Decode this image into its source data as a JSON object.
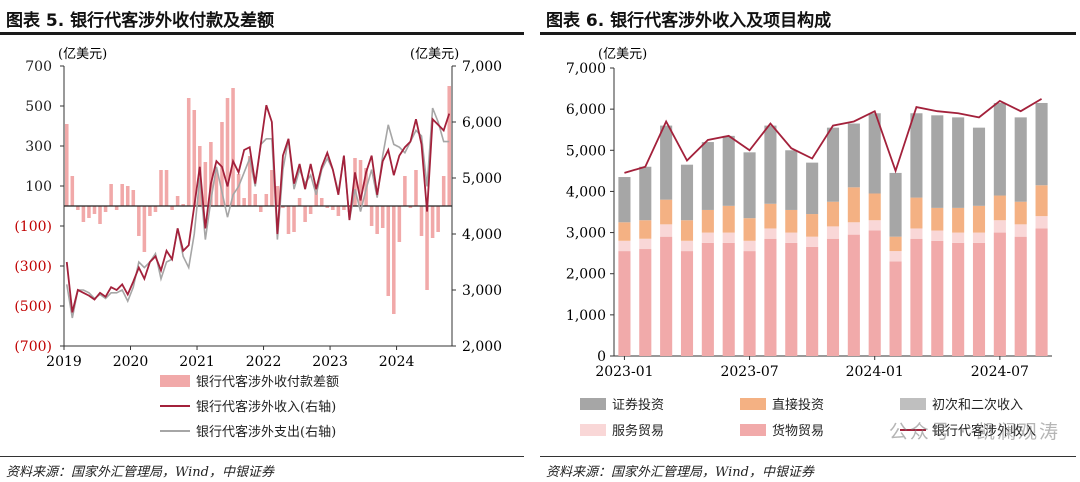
{
  "left": {
    "title": "图表 5. 银行代客涉外收付款及差额",
    "source": "资料来源：国家外汇管理局，Wind，中银证券",
    "chart_data": {
      "type": "bar",
      "left_unit": "(亿美元)",
      "right_unit": "(亿美元)",
      "left_ticks": [
        "700",
        "500",
        "300",
        "100",
        "(100)",
        "(300)",
        "(500)",
        "(700)"
      ],
      "left_tick_values": [
        700,
        500,
        300,
        100,
        -100,
        -300,
        -500,
        -700
      ],
      "right_ticks": [
        "7,000",
        "6,000",
        "5,000",
        "4,000",
        "3,000",
        "2,000"
      ],
      "right_tick_values": [
        7000,
        6000,
        5000,
        4000,
        3000,
        2000
      ],
      "ylim_left": [
        -700,
        700
      ],
      "ylim_right": [
        2000,
        7000
      ],
      "x_ticks": [
        "2019",
        "2020",
        "2021",
        "2022",
        "2023",
        "2024"
      ],
      "x_tick_index": [
        0,
        12,
        24,
        36,
        48,
        60
      ],
      "n_months": 70,
      "colors": {
        "bar": "#f1a9a9",
        "income": "#a3213b",
        "expense": "#a6a6a6",
        "negative_tick": "#c00000"
      },
      "series": [
        {
          "name": "银行代客涉外收付款差额",
          "kind": "bar",
          "values": [
            410,
            150,
            -20,
            -80,
            -60,
            -40,
            -90,
            -30,
            110,
            -20,
            110,
            100,
            80,
            -150,
            -230,
            -50,
            -30,
            180,
            180,
            -20,
            50,
            10,
            540,
            480,
            300,
            220,
            320,
            180,
            420,
            540,
            590,
            160,
            40,
            250,
            60,
            -30,
            60,
            180,
            100,
            -10,
            -140,
            -130,
            40,
            -80,
            -40,
            110,
            40,
            -10,
            -20,
            -50,
            -20,
            -30,
            240,
            230,
            190,
            -100,
            -140,
            -110,
            -450,
            -540,
            -180,
            150,
            -10,
            180,
            -150,
            -420,
            -160,
            -130,
            150,
            600
          ]
        },
        {
          "name": "银行代客涉外收入(右轴)",
          "kind": "line",
          "values": [
            3500,
            2600,
            3000,
            2950,
            2900,
            2830,
            2950,
            2880,
            3050,
            3000,
            3100,
            2920,
            3150,
            3400,
            3200,
            3500,
            3600,
            3350,
            3700,
            3550,
            4100,
            3700,
            3800,
            4500,
            5200,
            4100,
            4900,
            5300,
            5200,
            4850,
            5300,
            5100,
            5500,
            5550,
            4900,
            5600,
            6300,
            6000,
            4000,
            5400,
            5700,
            4900,
            5250,
            4800,
            5250,
            4800,
            5200,
            5450,
            5150,
            4700,
            5400,
            4250,
            5100,
            4600,
            5100,
            5400,
            4700,
            5300,
            5500,
            5050,
            5400,
            5550,
            5650,
            6050,
            5600,
            4400,
            6050,
            5950,
            5850,
            6150
          ]
        },
        {
          "name": "银行代客涉外支出(右轴)",
          "kind": "line",
          "values": [
            3100,
            2500,
            3000,
            3000,
            2950,
            2850,
            2920,
            2850,
            2950,
            2950,
            3000,
            2800,
            3050,
            3500,
            3400,
            3500,
            3650,
            3200,
            3500,
            3550,
            4100,
            3600,
            3400,
            4000,
            5000,
            3900,
            4600,
            5200,
            4750,
            4300,
            4700,
            4850,
            5100,
            5350,
            4850,
            5600,
            5700,
            5700,
            3900,
            5150,
            5700,
            4800,
            5150,
            4900,
            5050,
            4700,
            5150,
            5350,
            5150,
            4750,
            5400,
            4250,
            4800,
            4400,
            4800,
            5150,
            4650,
            5400,
            5950,
            5600,
            5550,
            5450,
            5650,
            5850,
            5750,
            4850,
            6250,
            6000,
            5650,
            5650
          ]
        }
      ]
    }
  },
  "right": {
    "title": "图表 6. 银行代客涉外收入及项目构成",
    "source": "资料来源：国家外汇管理局，Wind，中银证券",
    "chart_data": {
      "type": "bar",
      "unit": "(亿美元)",
      "y_ticks": [
        "7,000",
        "6,000",
        "5,000",
        "4,000",
        "3,000",
        "2,000",
        "1,000",
        "0"
      ],
      "y_tick_values": [
        7000,
        6000,
        5000,
        4000,
        3000,
        2000,
        1000,
        0
      ],
      "ylim": [
        0,
        7000
      ],
      "x_ticks": [
        "2023-01",
        "2023-07",
        "2024-01",
        "2024-07"
      ],
      "x_tick_index": [
        0,
        6,
        12,
        18
      ],
      "categories": [
        "2023-01",
        "2023-02",
        "2023-03",
        "2023-04",
        "2023-05",
        "2023-06",
        "2023-07",
        "2023-08",
        "2023-09",
        "2023-10",
        "2023-11",
        "2023-12",
        "2024-01",
        "2024-02",
        "2024-03",
        "2024-04",
        "2024-05",
        "2024-06",
        "2024-07",
        "2024-08",
        "2024-09"
      ],
      "series": [
        {
          "name": "货物贸易",
          "color": "#f1aaaa",
          "values": [
            2550,
            2600,
            2900,
            2550,
            2750,
            2750,
            2550,
            2850,
            2750,
            2650,
            2850,
            2950,
            3050,
            2300,
            2850,
            2800,
            2750,
            2750,
            3000,
            2900,
            3100
          ]
        },
        {
          "name": "服务贸易",
          "color": "#f9d7d7",
          "values": [
            250,
            250,
            300,
            250,
            250,
            250,
            250,
            250,
            250,
            250,
            300,
            300,
            250,
            250,
            250,
            250,
            250,
            250,
            300,
            300,
            300
          ]
        },
        {
          "name": "初次和二次收入",
          "color": "#bfbfbf",
          "values": [
            0,
            0,
            0,
            0,
            0,
            0,
            0,
            0,
            0,
            0,
            0,
            0,
            0,
            0,
            0,
            0,
            0,
            0,
            0,
            0,
            0
          ]
        },
        {
          "name": "直接投资",
          "color": "#f4b183",
          "values": [
            450,
            450,
            600,
            500,
            550,
            650,
            550,
            600,
            550,
            550,
            600,
            850,
            650,
            350,
            750,
            550,
            600,
            650,
            600,
            550,
            750
          ]
        },
        {
          "name": "证券投资",
          "color": "#a6a6a6",
          "values": [
            1100,
            1300,
            1800,
            1350,
            1650,
            1700,
            1600,
            1900,
            1450,
            1250,
            1800,
            1550,
            1950,
            1550,
            2050,
            2250,
            2200,
            1900,
            2250,
            2050,
            2000
          ]
        }
      ],
      "line": {
        "name": "银行代客涉外收入",
        "color": "#a3213b",
        "values": [
          4450,
          4600,
          5700,
          4750,
          5250,
          5350,
          5000,
          5650,
          5050,
          4800,
          5600,
          5700,
          5950,
          4500,
          6050,
          5950,
          5900,
          5800,
          6200,
          5950,
          6250
        ]
      },
      "legend": [
        "证券投资",
        "直接投资",
        "初次和二次收入",
        "服务贸易",
        "货物贸易",
        "银行代客涉外收入"
      ]
    }
  },
  "watermark": "公众号 · 凯澜观涛"
}
